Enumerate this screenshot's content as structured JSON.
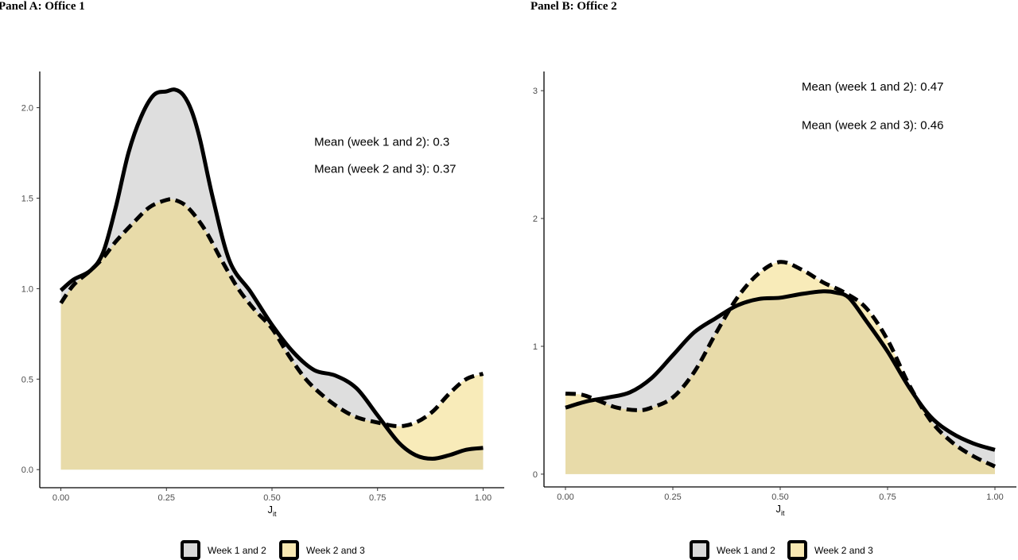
{
  "colors": {
    "week12_fill": "#bdbdbd",
    "week23_fill": "#f1d873",
    "line": "#000000",
    "axis": "#000000"
  },
  "legend": {
    "items": [
      {
        "label": "Week 1 and 2",
        "fill": "#d9d9d9"
      },
      {
        "label": "Week 2 and 3",
        "fill": "#f8e8b2"
      }
    ]
  },
  "chart_data": [
    {
      "type": "area",
      "title": "Panel A: Office 1",
      "xlabel": "J",
      "xlabel_sub": "it",
      "ylabel": "",
      "xlim": [
        -0.05,
        1.05
      ],
      "ylim": [
        -0.1,
        2.2
      ],
      "xticks": [
        0,
        0.25,
        0.5,
        0.75,
        1
      ],
      "xtick_labels": [
        "0.00",
        "0.25",
        "0.50",
        "0.75",
        "1.00"
      ],
      "yticks": [
        0,
        0.5,
        1,
        1.5,
        2
      ],
      "ytick_labels": [
        "0.0",
        "0.5",
        "1.0",
        "1.5",
        "2.0"
      ],
      "annotations": [
        {
          "text": "Mean (week 1 and 2): 0.3",
          "x": 0.6,
          "y": 1.79
        },
        {
          "text": "Mean (week 2 and 3): 0.37",
          "x": 0.6,
          "y": 1.64
        }
      ],
      "series": [
        {
          "name": "Week 1 and 2",
          "line": "solid",
          "x": [
            0,
            0.03,
            0.07,
            0.1,
            0.13,
            0.16,
            0.19,
            0.22,
            0.25,
            0.27,
            0.29,
            0.31,
            0.33,
            0.36,
            0.4,
            0.45,
            0.5,
            0.55,
            0.6,
            0.65,
            0.7,
            0.75,
            0.8,
            0.84,
            0.88,
            0.92,
            0.96,
            1
          ],
          "y": [
            0.99,
            1.05,
            1.1,
            1.2,
            1.45,
            1.75,
            1.95,
            2.07,
            2.09,
            2.1,
            2.07,
            1.98,
            1.82,
            1.5,
            1.15,
            0.98,
            0.8,
            0.65,
            0.55,
            0.52,
            0.45,
            0.3,
            0.15,
            0.08,
            0.06,
            0.08,
            0.11,
            0.12
          ]
        },
        {
          "name": "Week 2 and 3",
          "line": "dashed",
          "x": [
            0,
            0.03,
            0.07,
            0.1,
            0.13,
            0.17,
            0.21,
            0.25,
            0.27,
            0.3,
            0.34,
            0.38,
            0.42,
            0.46,
            0.5,
            0.54,
            0.58,
            0.62,
            0.66,
            0.7,
            0.75,
            0.8,
            0.84,
            0.88,
            0.92,
            0.96,
            1
          ],
          "y": [
            0.92,
            1.02,
            1.1,
            1.17,
            1.26,
            1.36,
            1.45,
            1.49,
            1.49,
            1.45,
            1.33,
            1.16,
            1.0,
            0.88,
            0.78,
            0.63,
            0.5,
            0.41,
            0.34,
            0.29,
            0.26,
            0.24,
            0.26,
            0.32,
            0.42,
            0.5,
            0.53
          ]
        }
      ]
    },
    {
      "type": "area",
      "title": "Panel B: Office 2",
      "xlabel": "J",
      "xlabel_sub": "it",
      "ylabel": "",
      "xlim": [
        -0.05,
        1.05
      ],
      "ylim": [
        -0.1,
        3.15
      ],
      "xticks": [
        0,
        0.25,
        0.5,
        0.75,
        1
      ],
      "xtick_labels": [
        "0.00",
        "0.25",
        "0.50",
        "0.75",
        "1.00"
      ],
      "yticks": [
        0,
        1,
        2,
        3
      ],
      "ytick_labels": [
        "0",
        "1",
        "2",
        "3"
      ],
      "annotations": [
        {
          "text": "Mean (week 1 and 2): 0.47",
          "x": 0.55,
          "y": 3.0
        },
        {
          "text": "Mean (week 2 and 3): 0.46",
          "x": 0.55,
          "y": 2.7
        }
      ],
      "series": [
        {
          "name": "Week 1 and 2",
          "line": "solid",
          "x": [
            0,
            0.05,
            0.1,
            0.15,
            0.2,
            0.25,
            0.3,
            0.35,
            0.4,
            0.45,
            0.5,
            0.55,
            0.6,
            0.63,
            0.66,
            0.7,
            0.75,
            0.8,
            0.85,
            0.9,
            0.95,
            1
          ],
          "y": [
            0.52,
            0.57,
            0.6,
            0.64,
            0.75,
            0.93,
            1.11,
            1.22,
            1.32,
            1.37,
            1.38,
            1.41,
            1.43,
            1.42,
            1.38,
            1.2,
            0.96,
            0.68,
            0.45,
            0.32,
            0.24,
            0.19
          ]
        },
        {
          "name": "Week 2 and 3",
          "line": "dashed",
          "x": [
            0,
            0.04,
            0.08,
            0.12,
            0.17,
            0.2,
            0.25,
            0.3,
            0.35,
            0.4,
            0.45,
            0.5,
            0.55,
            0.6,
            0.65,
            0.7,
            0.75,
            0.8,
            0.85,
            0.9,
            0.95,
            1
          ],
          "y": [
            0.63,
            0.62,
            0.57,
            0.52,
            0.5,
            0.52,
            0.6,
            0.8,
            1.1,
            1.38,
            1.57,
            1.66,
            1.6,
            1.5,
            1.42,
            1.3,
            1.05,
            0.7,
            0.42,
            0.25,
            0.14,
            0.06
          ]
        }
      ]
    }
  ]
}
